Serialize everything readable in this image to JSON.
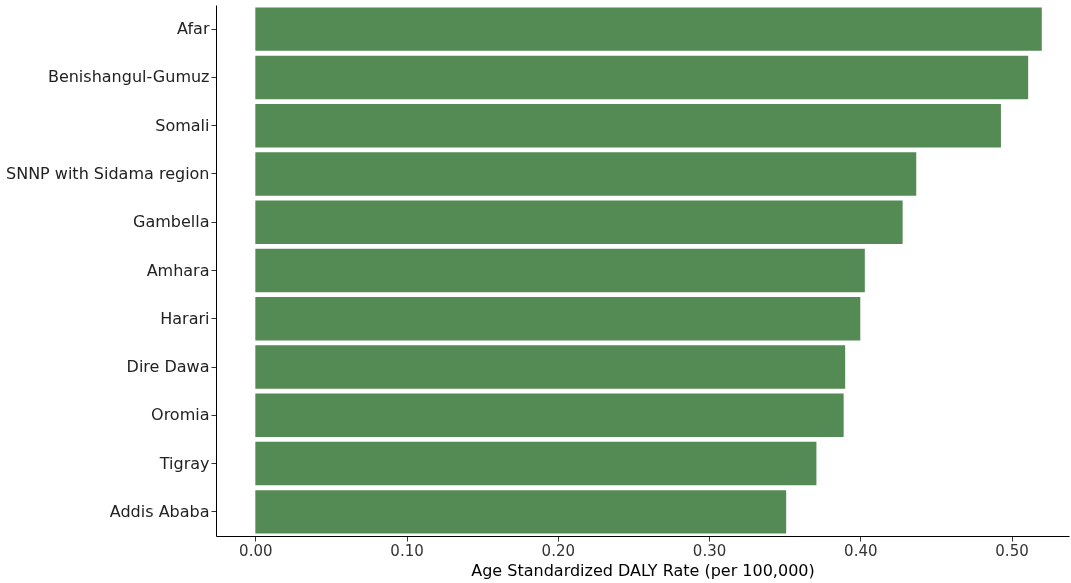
{
  "chart_data": {
    "type": "bar",
    "orientation": "horizontal",
    "xlabel": "Age Standardized DALY Rate (per 100,000)",
    "categories": [
      "Afar",
      "Benishangul-Gumuz",
      "Somali",
      "SNNP with Sidama region",
      "Gambella",
      "Amhara",
      "Harari",
      "Dire Dawa",
      "Oromia",
      "Tigray",
      "Addis Ababa"
    ],
    "values": [
      0.52,
      0.511,
      0.493,
      0.437,
      0.428,
      0.403,
      0.4,
      0.39,
      0.389,
      0.371,
      0.351
    ],
    "color": "#548b54",
    "xlim": [
      -0.026,
      0.538
    ],
    "xticks": [
      {
        "value": 0,
        "label": "0.00"
      },
      {
        "value": 0.1,
        "label": "0.10"
      },
      {
        "value": 0.2,
        "label": "0.20"
      },
      {
        "value": 0.3,
        "label": "0.30"
      },
      {
        "value": 0.4,
        "label": "0.40"
      },
      {
        "value": 0.5,
        "label": "0.50"
      }
    ],
    "grid": false
  }
}
